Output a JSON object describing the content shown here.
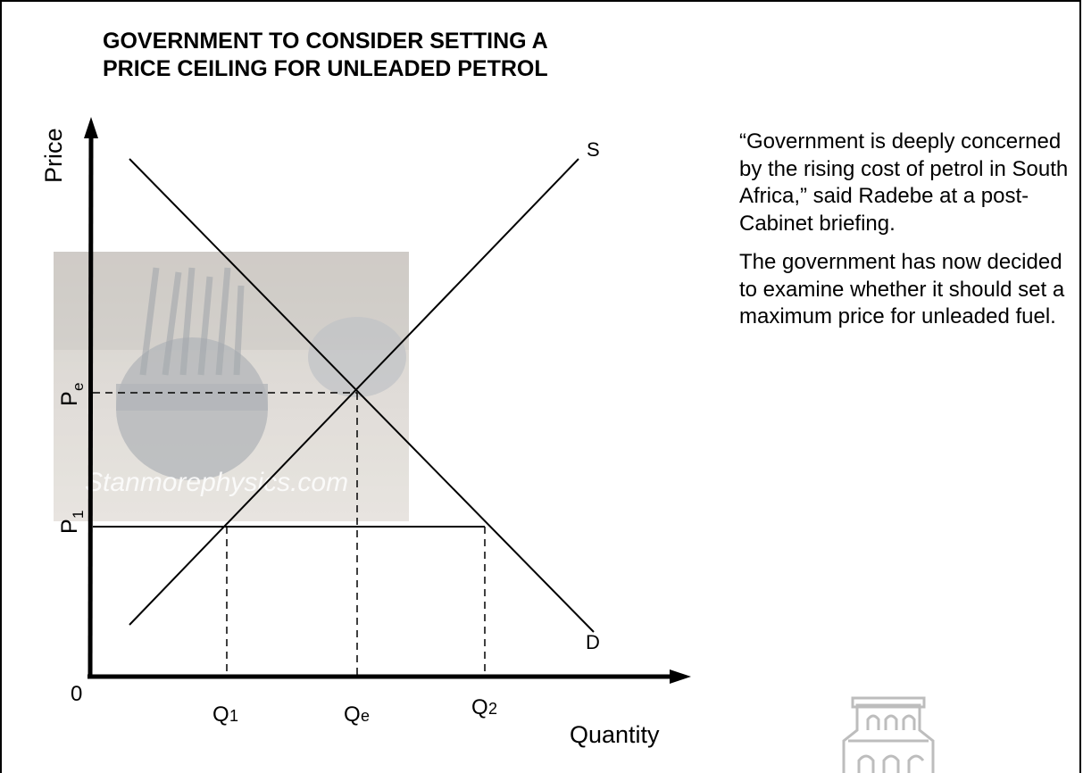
{
  "title": {
    "line1": "GOVERNMENT TO CONSIDER SETTING A",
    "line2": "PRICE CEILING FOR UNLEADED PETROL"
  },
  "quote": {
    "paragraph1": "“Government is deeply concerned by the rising cost of petrol in South Africa,” said Radebe at a post-Cabinet briefing.",
    "paragraph2": "The government has now decided to examine whether it should set a maximum price for unleaded fuel."
  },
  "diagram": {
    "y_axis_label": "Price",
    "x_axis_label": "Quantity",
    "origin_label": "0",
    "supply_label": "S",
    "demand_label": "D",
    "price_labels": {
      "pe": "P",
      "pe_sub": "e",
      "p1": "P",
      "p1_sub": "1"
    },
    "quantity_labels": {
      "q1": "Q",
      "q1_sub": "1",
      "qe": "Q",
      "qe_sub": "e",
      "q2": "Q",
      "q2_sub": "2"
    },
    "watermark_text": "Stanmorephysics.com"
  },
  "colors": {
    "ink": "#000000",
    "photo_bg": "#d9d6d1"
  }
}
